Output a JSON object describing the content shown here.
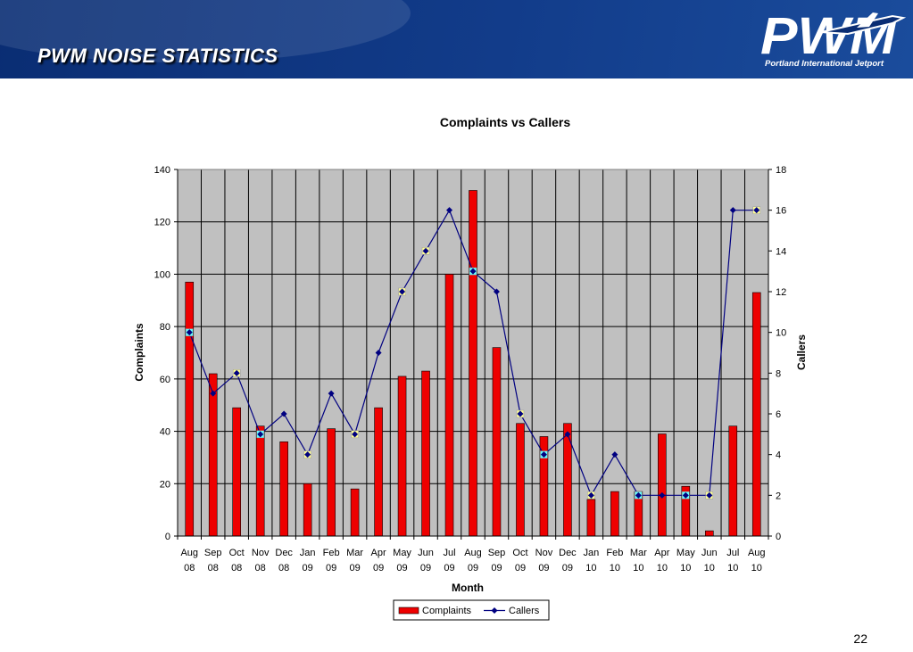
{
  "slide": {
    "title": "PWM NOISE STATISTICS",
    "logo_text": "PWM",
    "logo_subtitle": "Portland International Jetport",
    "page_number": "22"
  },
  "chart_data": {
    "type": "bar",
    "title": "Complaints vs Callers",
    "xlabel": "Month",
    "ylabel": "Complaints",
    "y2label": "Callers",
    "ylim": [
      0,
      140
    ],
    "y2lim": [
      0,
      18
    ],
    "yticks": [
      0,
      20,
      40,
      60,
      80,
      100,
      120,
      140
    ],
    "y2ticks": [
      0,
      2,
      4,
      6,
      8,
      10,
      12,
      14,
      16,
      18
    ],
    "grid": true,
    "legend_position": "bottom",
    "categories": [
      [
        "Aug",
        "08"
      ],
      [
        "Sep",
        "08"
      ],
      [
        "Oct",
        "08"
      ],
      [
        "Nov",
        "08"
      ],
      [
        "Dec",
        "08"
      ],
      [
        "Jan",
        "09"
      ],
      [
        "Feb",
        "09"
      ],
      [
        "Mar",
        "09"
      ],
      [
        "Apr",
        "09"
      ],
      [
        "May",
        "09"
      ],
      [
        "Jun",
        "09"
      ],
      [
        "Jul",
        "09"
      ],
      [
        "Aug",
        "09"
      ],
      [
        "Sep",
        "09"
      ],
      [
        "Oct",
        "09"
      ],
      [
        "Nov",
        "09"
      ],
      [
        "Dec",
        "09"
      ],
      [
        "Jan",
        "10"
      ],
      [
        "Feb",
        "10"
      ],
      [
        "Mar",
        "10"
      ],
      [
        "Apr",
        "10"
      ],
      [
        "May",
        "10"
      ],
      [
        "Jun",
        "10"
      ],
      [
        "Jul",
        "10"
      ],
      [
        "Aug",
        "10"
      ]
    ],
    "series": [
      {
        "name": "Complaints",
        "type": "bar",
        "axis": "left",
        "color": "#ee0000",
        "values": [
          97,
          62,
          49,
          42,
          36,
          20,
          41,
          18,
          49,
          61,
          63,
          100,
          132,
          72,
          43,
          38,
          43,
          14,
          17,
          17,
          39,
          19,
          2,
          42,
          93
        ]
      },
      {
        "name": "Callers",
        "type": "line",
        "axis": "right",
        "color": "#000080",
        "values": [
          10,
          7,
          8,
          5,
          6,
          4,
          7,
          5,
          9,
          12,
          14,
          16,
          13,
          12,
          6,
          4,
          5,
          2,
          4,
          2,
          2,
          2,
          2,
          16,
          16
        ]
      }
    ],
    "colors": {
      "plot_background": "#c0c0c0",
      "gridline": "#000000",
      "highlight_yellow": "#ffff99",
      "highlight_cyan": "#66ffff"
    },
    "highlighted_points": {
      "yellow": [
        2,
        5,
        7,
        9,
        10,
        14,
        17,
        22,
        24
      ],
      "cyan": [
        0,
        3,
        12,
        15,
        19,
        21
      ]
    }
  }
}
